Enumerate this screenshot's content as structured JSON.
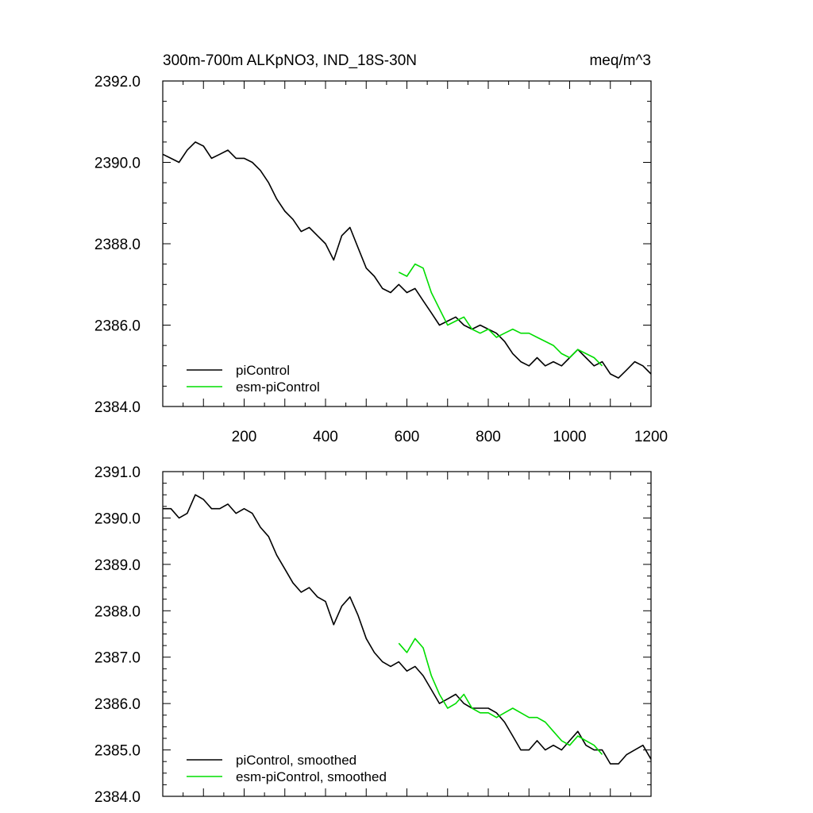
{
  "chart_data": [
    {
      "type": "line",
      "title": "300m-700m ALKpNO3, IND_18S-30N",
      "units": "meq/m^3",
      "xlim": [
        0,
        1200
      ],
      "ylim": [
        2384.0,
        2392.0
      ],
      "x_ticks": [
        200,
        400,
        600,
        800,
        1000,
        1200
      ],
      "y_ticks": [
        "2384.0",
        "2386.0",
        "2388.0",
        "2390.0",
        "2392.0"
      ],
      "legend_position": "bottom-left",
      "series": [
        {
          "name": "piControl",
          "color": "#000000",
          "x": [
            0,
            20,
            40,
            60,
            80,
            100,
            120,
            140,
            160,
            180,
            200,
            220,
            240,
            260,
            280,
            300,
            320,
            340,
            360,
            380,
            400,
            420,
            440,
            460,
            480,
            500,
            520,
            540,
            560,
            580,
            600,
            620,
            640,
            660,
            680,
            700,
            720,
            740,
            760,
            780,
            800,
            820,
            840,
            860,
            880,
            900,
            920,
            940,
            960,
            980,
            1000,
            1020,
            1040,
            1060,
            1080,
            1100,
            1120,
            1140,
            1160,
            1180,
            1200
          ],
          "values": [
            2390.2,
            2390.1,
            2390.0,
            2390.3,
            2390.5,
            2390.4,
            2390.1,
            2390.2,
            2390.3,
            2390.1,
            2390.1,
            2390.0,
            2389.8,
            2389.5,
            2389.1,
            2388.8,
            2388.6,
            2388.3,
            2388.4,
            2388.2,
            2388.0,
            2387.6,
            2388.2,
            2388.4,
            2387.9,
            2387.4,
            2387.2,
            2386.9,
            2386.8,
            2387.0,
            2386.8,
            2386.9,
            2386.6,
            2386.3,
            2386.0,
            2386.1,
            2386.2,
            2386.0,
            2385.9,
            2386.0,
            2385.9,
            2385.8,
            2385.6,
            2385.3,
            2385.1,
            2385.0,
            2385.2,
            2385.0,
            2385.1,
            2385.0,
            2385.2,
            2385.4,
            2385.2,
            2385.0,
            2385.1,
            2384.8,
            2384.7,
            2384.9,
            2385.1,
            2385.0,
            2384.8
          ]
        },
        {
          "name": "esm-piControl",
          "color": "#00dd00",
          "x": [
            580,
            600,
            620,
            640,
            660,
            680,
            700,
            720,
            740,
            760,
            780,
            800,
            820,
            840,
            860,
            880,
            900,
            920,
            940,
            960,
            980,
            1000,
            1020,
            1040,
            1060,
            1080
          ],
          "values": [
            2387.3,
            2387.2,
            2387.5,
            2387.4,
            2386.8,
            2386.4,
            2386.0,
            2386.1,
            2386.2,
            2385.9,
            2385.8,
            2385.9,
            2385.7,
            2385.8,
            2385.9,
            2385.8,
            2385.8,
            2385.7,
            2385.6,
            2385.5,
            2385.3,
            2385.2,
            2385.4,
            2385.3,
            2385.2,
            2385.0
          ]
        }
      ]
    },
    {
      "type": "line",
      "title": "",
      "units": "",
      "xlim": [
        0,
        1200
      ],
      "ylim": [
        2384.0,
        2391.0
      ],
      "x_ticks": [],
      "y_ticks": [
        "2384.0",
        "2385.0",
        "2386.0",
        "2387.0",
        "2388.0",
        "2389.0",
        "2390.0",
        "2391.0"
      ],
      "legend_position": "bottom-left",
      "series": [
        {
          "name": "piControl, smoothed",
          "color": "#000000",
          "x": [
            0,
            20,
            40,
            60,
            80,
            100,
            120,
            140,
            160,
            180,
            200,
            220,
            240,
            260,
            280,
            300,
            320,
            340,
            360,
            380,
            400,
            420,
            440,
            460,
            480,
            500,
            520,
            540,
            560,
            580,
            600,
            620,
            640,
            660,
            680,
            700,
            720,
            740,
            760,
            780,
            800,
            820,
            840,
            860,
            880,
            900,
            920,
            940,
            960,
            980,
            1000,
            1020,
            1040,
            1060,
            1080,
            1100,
            1120,
            1140,
            1160,
            1180,
            1200
          ],
          "values": [
            2390.2,
            2390.2,
            2390.0,
            2390.1,
            2390.5,
            2390.4,
            2390.2,
            2390.2,
            2390.3,
            2390.1,
            2390.2,
            2390.1,
            2389.8,
            2389.6,
            2389.2,
            2388.9,
            2388.6,
            2388.4,
            2388.5,
            2388.3,
            2388.2,
            2387.7,
            2388.1,
            2388.3,
            2387.9,
            2387.4,
            2387.1,
            2386.9,
            2386.8,
            2386.9,
            2386.7,
            2386.8,
            2386.6,
            2386.3,
            2386.0,
            2386.1,
            2386.2,
            2386.0,
            2385.9,
            2385.9,
            2385.9,
            2385.8,
            2385.6,
            2385.3,
            2385.0,
            2385.0,
            2385.2,
            2385.0,
            2385.1,
            2385.0,
            2385.2,
            2385.4,
            2385.1,
            2385.0,
            2385.0,
            2384.7,
            2384.7,
            2384.9,
            2385.0,
            2385.1,
            2384.8
          ]
        },
        {
          "name": "esm-piControl, smoothed",
          "color": "#00dd00",
          "x": [
            580,
            600,
            620,
            640,
            660,
            680,
            700,
            720,
            740,
            760,
            780,
            800,
            820,
            840,
            860,
            880,
            900,
            920,
            940,
            960,
            980,
            1000,
            1020,
            1040,
            1060,
            1080
          ],
          "values": [
            2387.3,
            2387.1,
            2387.4,
            2387.2,
            2386.6,
            2386.2,
            2385.9,
            2386.0,
            2386.2,
            2385.9,
            2385.8,
            2385.8,
            2385.7,
            2385.8,
            2385.9,
            2385.8,
            2385.7,
            2385.7,
            2385.6,
            2385.4,
            2385.2,
            2385.1,
            2385.3,
            2385.2,
            2385.1,
            2384.9
          ]
        }
      ]
    }
  ]
}
